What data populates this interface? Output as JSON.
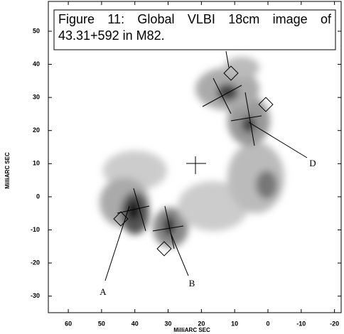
{
  "chart_data": {
    "type": "contour",
    "title": "Figure 11: Global VLBI 18cm image of 43.31+592 in M82.",
    "xlabel": "MilliARC SEC",
    "ylabel": "MilliARC SEC",
    "xlim": [
      66,
      -22
    ],
    "ylim": [
      -35,
      59
    ],
    "xticks": [
      60,
      50,
      40,
      30,
      20,
      10,
      0,
      -10,
      -20
    ],
    "yticks": [
      -30,
      -20,
      -10,
      0,
      10,
      20,
      30,
      40,
      50
    ],
    "annotations": [
      "A",
      "B",
      "D"
    ]
  }
}
